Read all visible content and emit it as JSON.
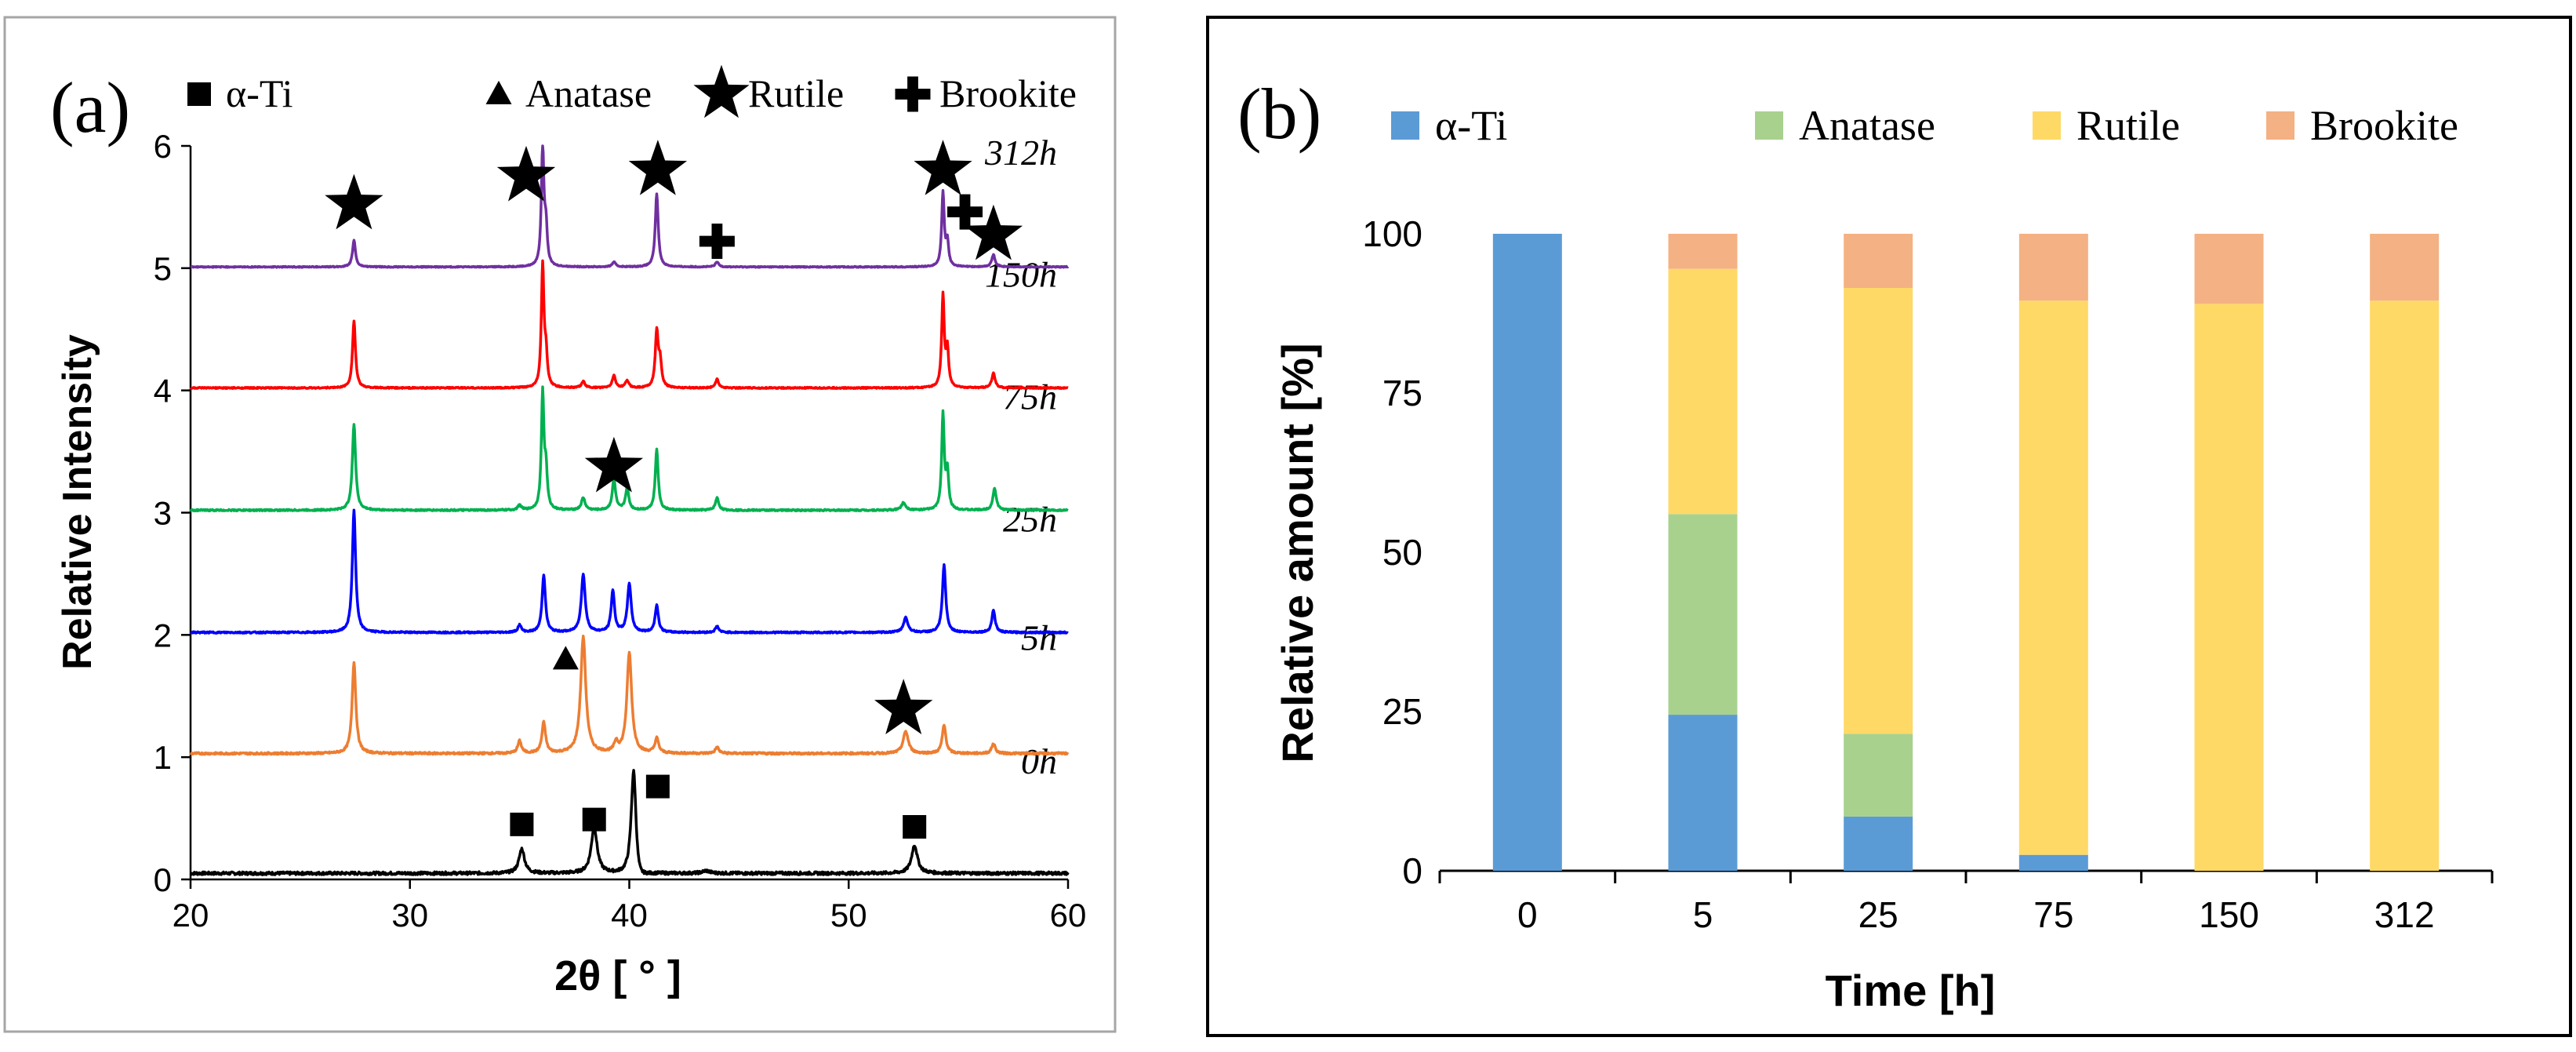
{
  "panel_a": {
    "label": "(a)",
    "xlabel": "2θ [ ° ]",
    "ylabel": "Relative Intensity",
    "legend": [
      {
        "symbol": "square",
        "label": "α-Ti"
      },
      {
        "symbol": "triangle",
        "label": "Anatase"
      },
      {
        "symbol": "star",
        "label": "Rutile"
      },
      {
        "symbol": "cross",
        "label": "Brookite"
      }
    ]
  },
  "panel_b": {
    "label": "(b)",
    "xlabel": "Time [h]",
    "ylabel": "Relative amount [%]",
    "legend": [
      {
        "label": "α-Ti",
        "color": "#5b9bd5"
      },
      {
        "label": "Anatase",
        "color": "#a9d18e"
      },
      {
        "label": "Rutile",
        "color": "#ffd966"
      },
      {
        "label": "Brookite",
        "color": "#f4b183"
      }
    ]
  },
  "chart_data": [
    {
      "type": "line",
      "panel": "a",
      "title": "",
      "xlabel": "2θ [ ° ]",
      "ylabel": "Relative Intensity",
      "xlim": [
        20,
        60
      ],
      "ylim": [
        0,
        6
      ],
      "xticks": [
        20,
        30,
        40,
        50,
        60
      ],
      "yticks": [
        0,
        1,
        2,
        3,
        4,
        5,
        6
      ],
      "grid": false,
      "series": [
        {
          "name": "0h",
          "label": "0h",
          "color": "#000000",
          "offset": 0.05,
          "noise": 0.012,
          "peaks": [
            [
              35.1,
              0.2,
              0.15
            ],
            [
              38.4,
              0.38,
              0.16
            ],
            [
              40.2,
              0.95,
              0.14
            ],
            [
              40.35,
              -0.15,
              0.3
            ],
            [
              53.0,
              0.23,
              0.16
            ],
            [
              43.5,
              0.02,
              0.2
            ]
          ]
        },
        {
          "name": "5h",
          "label": "5h",
          "color": "#ed7d31",
          "offset": 1.03,
          "noise": 0.008,
          "peaks": [
            [
              27.45,
              0.75,
              0.1
            ],
            [
              35.0,
              0.1,
              0.1
            ],
            [
              36.1,
              0.25,
              0.1
            ],
            [
              37.9,
              0.95,
              0.14
            ],
            [
              39.4,
              0.08,
              0.1
            ],
            [
              40.0,
              0.82,
              0.13
            ],
            [
              41.25,
              0.12,
              0.1
            ],
            [
              44.0,
              0.05,
              0.1
            ],
            [
              52.6,
              0.18,
              0.14
            ],
            [
              54.35,
              0.23,
              0.1
            ],
            [
              56.6,
              0.08,
              0.1
            ]
          ]
        },
        {
          "name": "25h",
          "label": "25h",
          "color": "#0000ff",
          "offset": 2.02,
          "noise": 0.006,
          "peaks": [
            [
              27.45,
              1.0,
              0.09
            ],
            [
              35.0,
              0.06,
              0.09
            ],
            [
              36.1,
              0.47,
              0.09
            ],
            [
              37.9,
              0.47,
              0.11
            ],
            [
              39.25,
              0.34,
              0.09
            ],
            [
              40.0,
              0.4,
              0.1
            ],
            [
              41.25,
              0.22,
              0.09
            ],
            [
              44.0,
              0.05,
              0.09
            ],
            [
              52.6,
              0.12,
              0.12
            ],
            [
              54.35,
              0.55,
              0.09
            ],
            [
              56.6,
              0.18,
              0.09
            ]
          ]
        },
        {
          "name": "75h",
          "label": "75h",
          "color": "#00b050",
          "offset": 3.02,
          "noise": 0.006,
          "peaks": [
            [
              27.45,
              0.7,
              0.09
            ],
            [
              35.0,
              0.04,
              0.09
            ],
            [
              36.05,
              0.95,
              0.07
            ],
            [
              36.2,
              0.3,
              0.07
            ],
            [
              37.9,
              0.1,
              0.1
            ],
            [
              39.3,
              0.25,
              0.09
            ],
            [
              39.9,
              0.18,
              0.09
            ],
            [
              41.25,
              0.5,
              0.08
            ],
            [
              44.0,
              0.1,
              0.09
            ],
            [
              52.5,
              0.06,
              0.12
            ],
            [
              54.3,
              0.78,
              0.07
            ],
            [
              54.5,
              0.3,
              0.07
            ],
            [
              56.65,
              0.18,
              0.09
            ]
          ]
        },
        {
          "name": "150h",
          "label": "150h",
          "color": "#ff0000",
          "offset": 4.02,
          "noise": 0.005,
          "peaks": [
            [
              27.45,
              0.55,
              0.08
            ],
            [
              36.05,
              1.0,
              0.07
            ],
            [
              36.2,
              0.25,
              0.07
            ],
            [
              37.9,
              0.05,
              0.1
            ],
            [
              39.3,
              0.1,
              0.09
            ],
            [
              39.9,
              0.06,
              0.09
            ],
            [
              41.25,
              0.45,
              0.08
            ],
            [
              41.4,
              0.2,
              0.08
            ],
            [
              44.0,
              0.07,
              0.09
            ],
            [
              54.3,
              0.75,
              0.07
            ],
            [
              54.5,
              0.3,
              0.07
            ],
            [
              56.6,
              0.12,
              0.09
            ]
          ]
        },
        {
          "name": "312h",
          "label": "312h",
          "color": "#7030a0",
          "offset": 5.01,
          "noise": 0.004,
          "peaks": [
            [
              27.45,
              0.22,
              0.08
            ],
            [
              36.05,
              0.98,
              0.07
            ],
            [
              36.2,
              0.3,
              0.07
            ],
            [
              39.3,
              0.04,
              0.09
            ],
            [
              41.25,
              0.6,
              0.08
            ],
            [
              44.0,
              0.04,
              0.09
            ],
            [
              54.3,
              0.6,
              0.07
            ],
            [
              54.5,
              0.2,
              0.07
            ],
            [
              56.6,
              0.1,
              0.09
            ]
          ]
        }
      ],
      "annotations": [
        {
          "symbol": "square",
          "x": 35.1,
          "y": 0.45,
          "phase": "α-Ti"
        },
        {
          "symbol": "square",
          "x": 38.4,
          "y": 0.49,
          "phase": "α-Ti"
        },
        {
          "symbol": "square",
          "x": 41.3,
          "y": 0.76,
          "phase": "α-Ti"
        },
        {
          "symbol": "square",
          "x": 53.0,
          "y": 0.43,
          "phase": "α-Ti"
        },
        {
          "symbol": "triangle",
          "x": 37.1,
          "y": 1.8,
          "phase": "Anatase"
        },
        {
          "symbol": "star",
          "x": 52.5,
          "y": 1.39,
          "phase": "Rutile"
        },
        {
          "symbol": "star",
          "x": 39.3,
          "y": 3.37,
          "phase": "Rutile"
        },
        {
          "symbol": "star",
          "x": 27.45,
          "y": 5.52,
          "phase": "Rutile"
        },
        {
          "symbol": "star",
          "x": 35.3,
          "y": 5.75,
          "phase": "Rutile"
        },
        {
          "symbol": "star",
          "x": 41.3,
          "y": 5.8,
          "phase": "Rutile"
        },
        {
          "symbol": "star",
          "x": 54.3,
          "y": 5.8,
          "phase": "Rutile"
        },
        {
          "symbol": "star",
          "x": 56.6,
          "y": 5.27,
          "phase": "Rutile"
        },
        {
          "symbol": "cross",
          "x": 44.0,
          "y": 5.22,
          "phase": "Brookite"
        },
        {
          "symbol": "cross",
          "x": 55.3,
          "y": 5.46,
          "phase": "Brookite"
        }
      ]
    },
    {
      "type": "bar",
      "panel": "b",
      "stacked": true,
      "title": "",
      "xlabel": "Time [h]",
      "ylabel": "Relative amount [%]",
      "ylim": [
        0,
        100
      ],
      "yticks": [
        0,
        25,
        50,
        75,
        100
      ],
      "categories": [
        "0",
        "5",
        "25",
        "75",
        "150",
        "312"
      ],
      "series": [
        {
          "name": "α-Ti",
          "color": "#5b9bd5",
          "values": [
            100,
            24.5,
            8.5,
            2.5,
            0,
            0
          ]
        },
        {
          "name": "Anatase",
          "color": "#a9d18e",
          "values": [
            0,
            31.5,
            13,
            0,
            0,
            0
          ]
        },
        {
          "name": "Rutile",
          "color": "#ffd966",
          "values": [
            0,
            38.5,
            70,
            87,
            89,
            89.5
          ]
        },
        {
          "name": "Brookite",
          "color": "#f4b183",
          "values": [
            0,
            5.5,
            8.5,
            10.5,
            11,
            10.5
          ]
        }
      ]
    }
  ]
}
